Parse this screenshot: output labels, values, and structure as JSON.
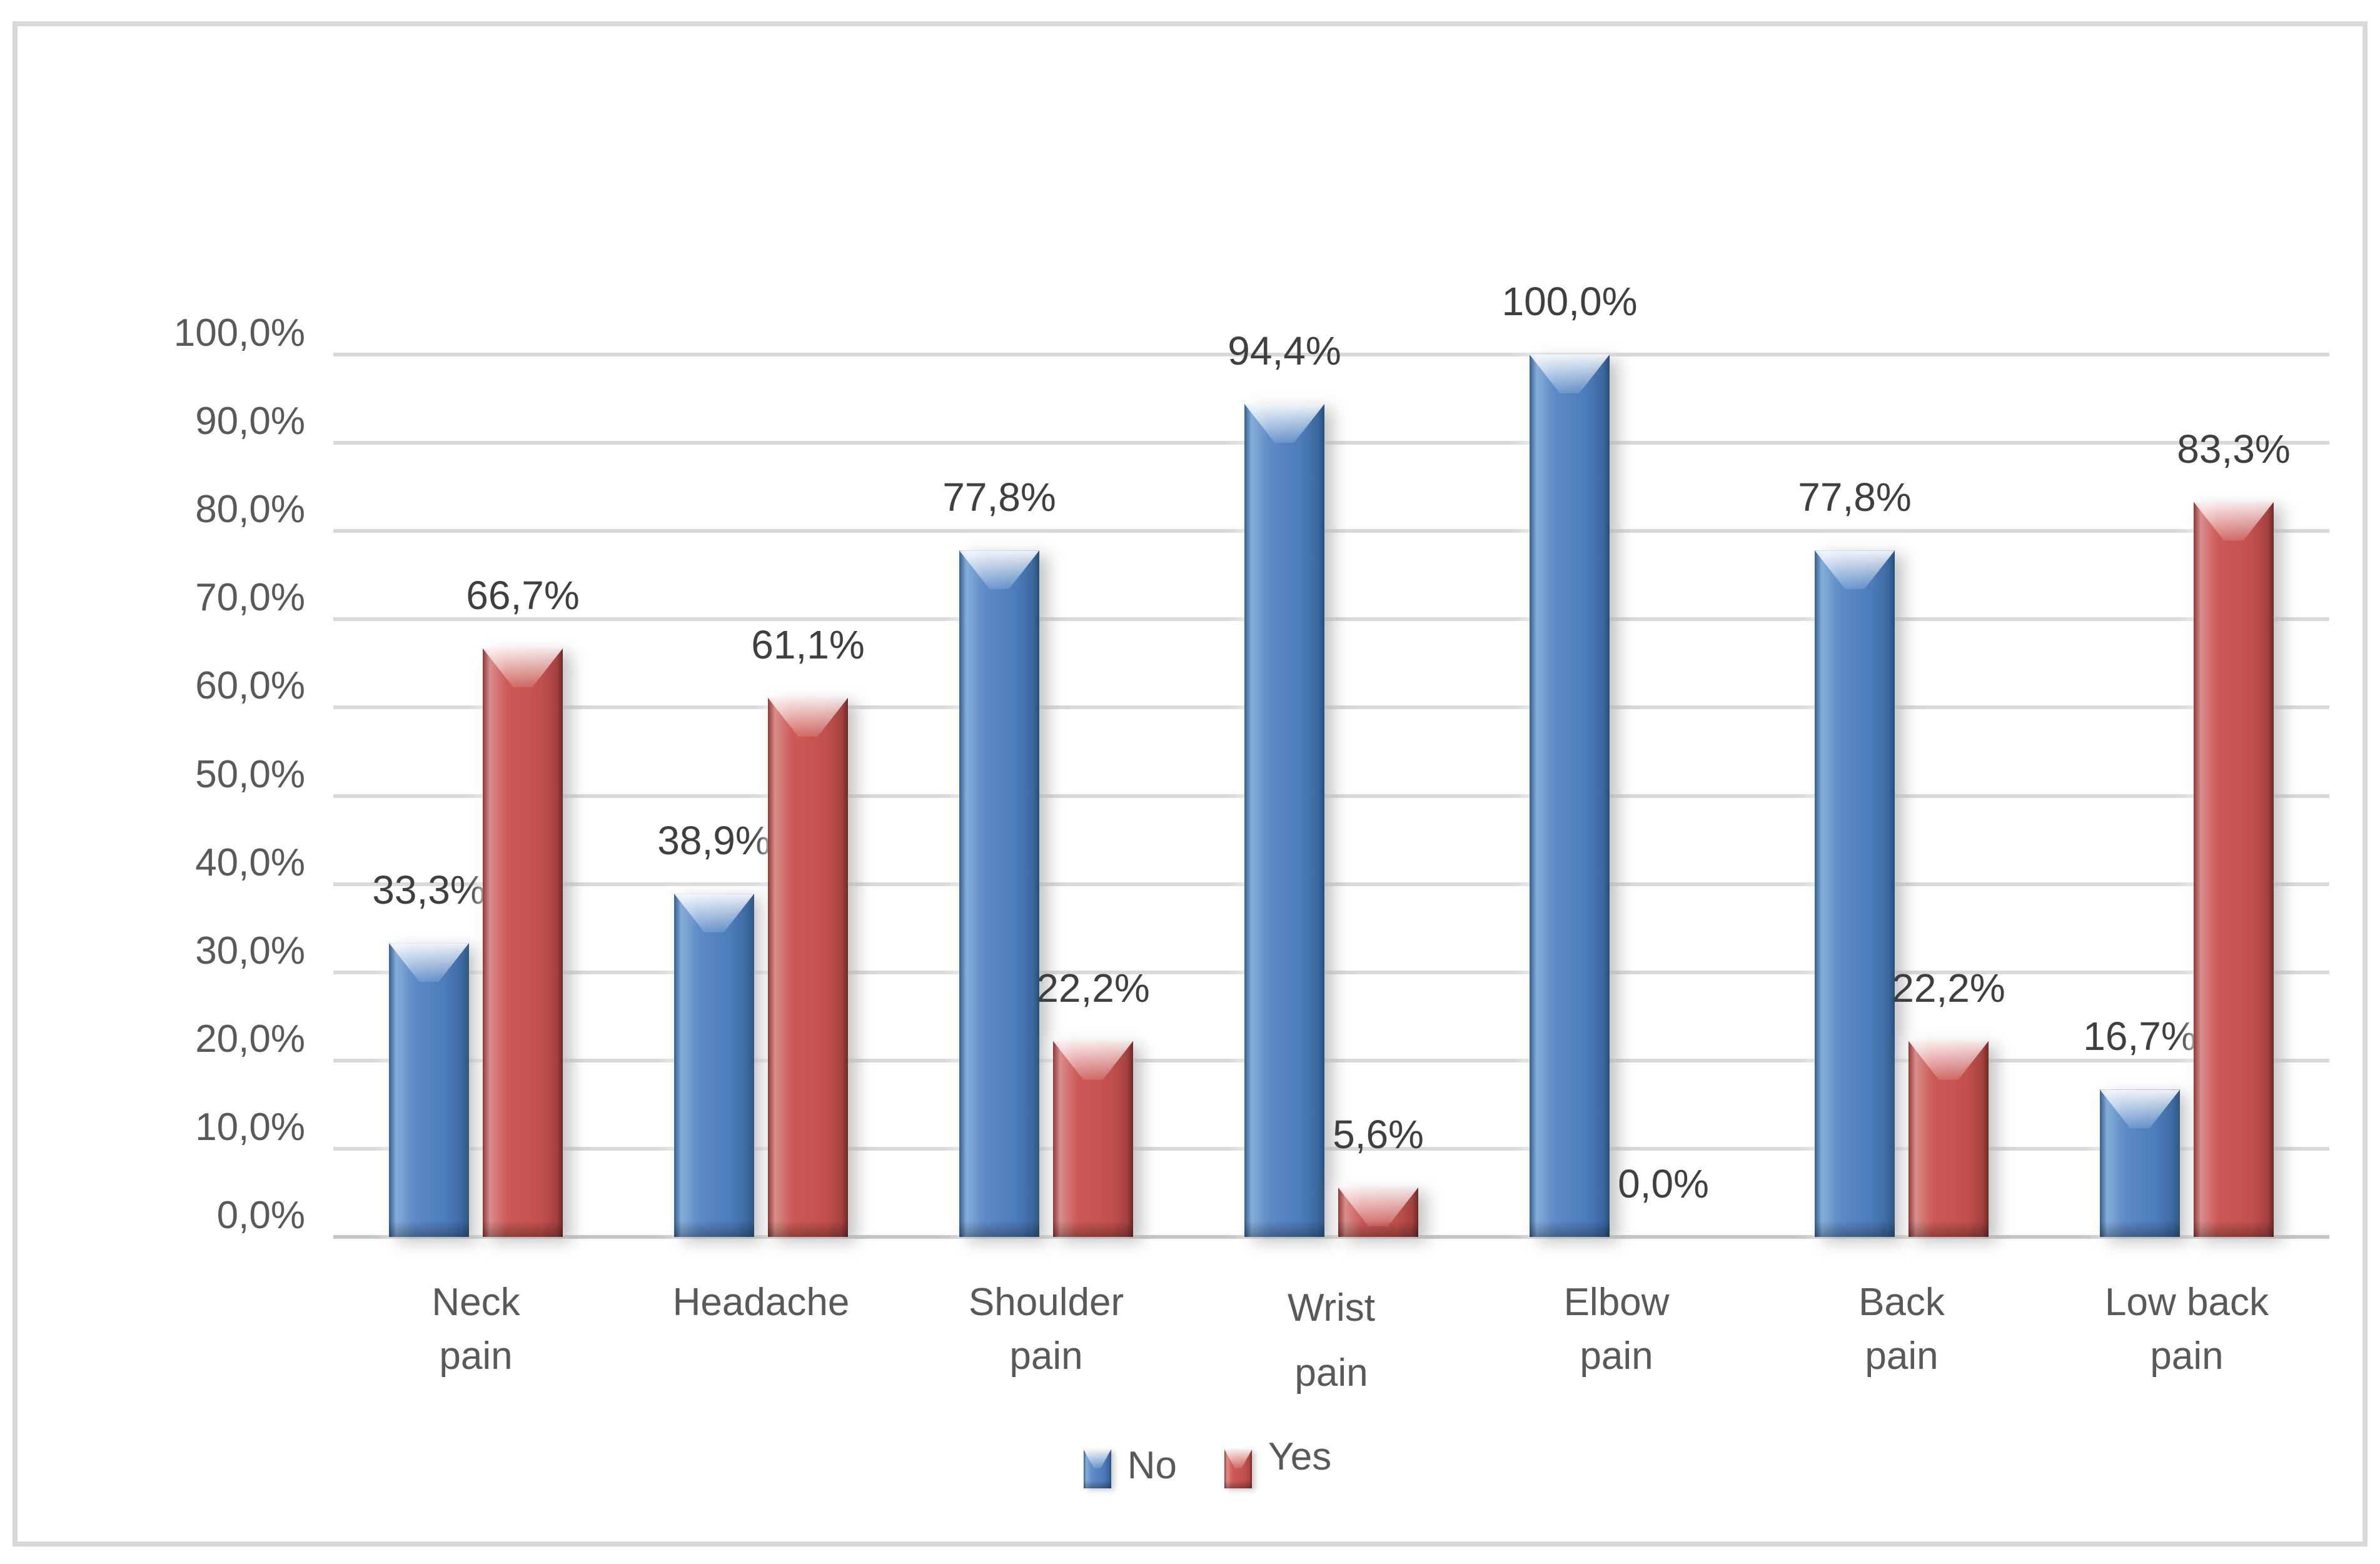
{
  "chart_data": {
    "type": "bar",
    "title": "",
    "categories": [
      "Neck\npain",
      "Headache",
      "Shoulder\npain",
      "Wrist\npain",
      "Elbow\npain",
      "Back\npain",
      "Low back\npain"
    ],
    "series": [
      {
        "name": "No",
        "color": "#4F81BD",
        "values": [
          33.3,
          38.9,
          77.8,
          94.4,
          100.0,
          77.8,
          16.7
        ],
        "labels": [
          "33,3%",
          "38,9%",
          "77,8%",
          "94,4%",
          "100,0%",
          "77,8%",
          "16,7%"
        ]
      },
      {
        "name": "Yes",
        "color": "#C0504D",
        "values": [
          66.7,
          61.1,
          22.2,
          5.6,
          0.0,
          22.2,
          83.3
        ],
        "labels": [
          "66,7%",
          "61,1%",
          "22,2%",
          "5,6%",
          "0,0%",
          "22,2%",
          "83,3%"
        ]
      }
    ],
    "y_axis": {
      "min": 0,
      "max": 100,
      "step": 10,
      "ticks": [
        "100,0%",
        "90,0%",
        "80,0%",
        "70,0%",
        "60,0%",
        "50,0%",
        "40,0%",
        "30,0%",
        "20,0%",
        "10,0%",
        "0,0%"
      ]
    },
    "grid": true,
    "legend_position": "bottom",
    "decimal_separator": ","
  },
  "colors": {
    "no_bar": "#4F81BD",
    "yes_bar": "#C0504D",
    "gridline": "#D9D9D9",
    "axis_line": "#C6C6C6",
    "tick_label": "#595959",
    "data_label": "#3F3F3F",
    "frame_border": "#D9D9D9",
    "background": "#FFFFFF"
  }
}
